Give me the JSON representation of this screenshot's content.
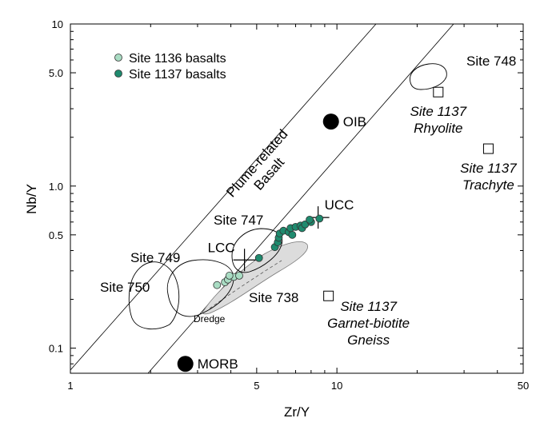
{
  "chart_data": {
    "type": "scatter",
    "xlabel": "Zr/Y",
    "ylabel": "Nb/Y",
    "xscale": "log",
    "yscale": "log",
    "xlim": [
      1,
      50
    ],
    "ylim": [
      0.07,
      10
    ],
    "x_tick_labels": [
      {
        "value": 1,
        "label": "1"
      },
      {
        "value": 5,
        "label": "5"
      },
      {
        "value": 10,
        "label": "10"
      },
      {
        "value": 50,
        "label": "50"
      }
    ],
    "y_tick_labels": [
      {
        "value": 0.1,
        "label": "0.1"
      },
      {
        "value": 0.5,
        "label": "0.5"
      },
      {
        "value": 1,
        "label": "1.0"
      },
      {
        "value": 5,
        "label": "5.0"
      },
      {
        "value": 10,
        "label": "10"
      }
    ],
    "legend_position": "top-left",
    "legend": [
      {
        "name": "Site 1136 basalts",
        "color": "#a9dcc3"
      },
      {
        "name": "Site 1137 basalts",
        "color": "#1f8a6e"
      }
    ],
    "series": [
      {
        "name": "Site 1136 basalts",
        "color": "#a9dcc3",
        "points": [
          [
            3.55,
            0.245
          ],
          [
            3.8,
            0.255
          ],
          [
            3.9,
            0.265
          ],
          [
            4.1,
            0.275
          ],
          [
            3.95,
            0.28
          ],
          [
            4.3,
            0.28
          ]
        ]
      },
      {
        "name": "Site 1137 basalts",
        "color": "#1f8a6e",
        "points": [
          [
            5.1,
            0.36
          ],
          [
            5.85,
            0.42
          ],
          [
            6.0,
            0.45
          ],
          [
            6.05,
            0.48
          ],
          [
            6.1,
            0.51
          ],
          [
            6.3,
            0.53
          ],
          [
            6.6,
            0.52
          ],
          [
            6.8,
            0.5
          ],
          [
            6.7,
            0.55
          ],
          [
            7.0,
            0.56
          ],
          [
            7.3,
            0.57
          ],
          [
            7.4,
            0.55
          ],
          [
            7.6,
            0.58
          ],
          [
            8.0,
            0.6
          ],
          [
            7.9,
            0.62
          ],
          [
            8.6,
            0.63
          ]
        ]
      }
    ],
    "reference_points": [
      {
        "label": "OIB",
        "x": 9.5,
        "y": 2.5,
        "marker": "filled-circle"
      },
      {
        "label": "MORB",
        "x": 2.7,
        "y": 0.08,
        "marker": "filled-circle"
      },
      {
        "label": "UCC",
        "x": 8.5,
        "y": 0.64,
        "marker": "cross"
      },
      {
        "label": "LCC",
        "x": 4.5,
        "y": 0.35,
        "marker": "cross"
      }
    ],
    "samples": [
      {
        "label_lines": [
          "Site 1137",
          "Rhyolite"
        ],
        "x": 24,
        "y": 3.8,
        "marker": "open-square"
      },
      {
        "label_lines": [
          "Site 1137",
          "Trachyte"
        ],
        "x": 37,
        "y": 1.7,
        "marker": "open-square"
      },
      {
        "label_lines": [
          "Site 1137",
          "Garnet-biotite",
          "Gneiss"
        ],
        "x": 9.3,
        "y": 0.21,
        "marker": "open-square"
      }
    ],
    "field_labels": [
      "Site 748",
      "Site 747",
      "Site 749",
      "Site 750",
      "Site 738",
      "Dredge"
    ],
    "band_label_lines": [
      "Plume-related",
      "Basalt"
    ]
  }
}
